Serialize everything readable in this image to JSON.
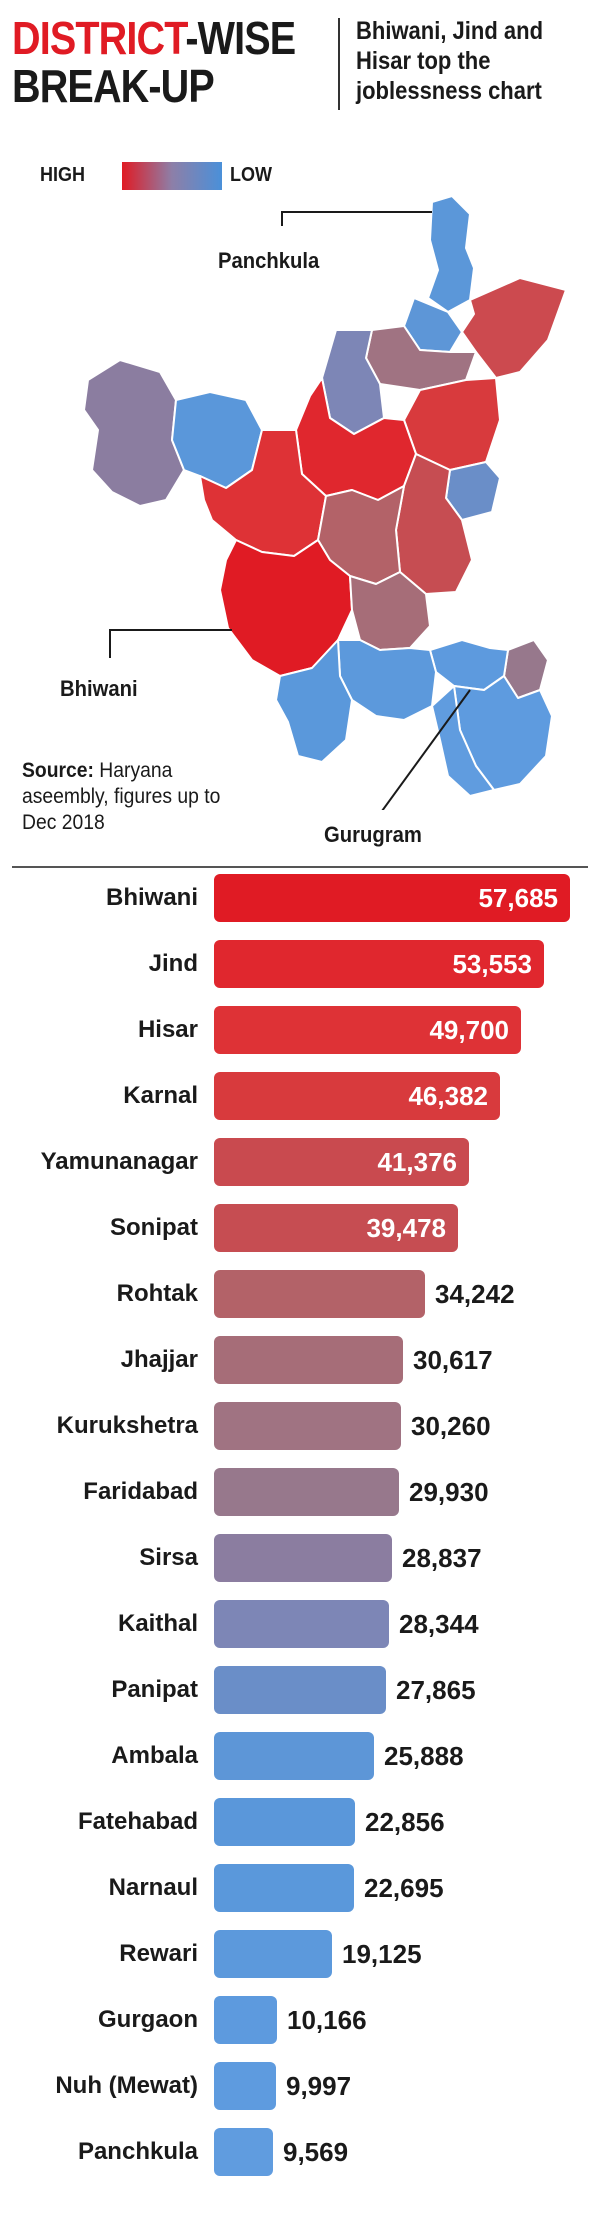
{
  "header": {
    "title_accent": "DISTRICT",
    "title_rest": "-WISE",
    "title_line2": "BREAK-UP",
    "subtitle": "Bhiwani, Jind and Hisar top the joblessness chart"
  },
  "legend": {
    "high_label": "HIGH",
    "low_label": "LOW",
    "high_color": "#e01b24",
    "low_color": "#4a90d9"
  },
  "map": {
    "labels": {
      "panchkula": "Panchkula",
      "bhiwani": "Bhiwani",
      "gurugram": "Gurugram"
    }
  },
  "source": {
    "label": "Source:",
    "text": "Haryana aseembly, figures up to Dec 2018"
  },
  "chart_data": {
    "type": "bar",
    "orientation": "horizontal",
    "title": "DISTRICT-WISE BREAK-UP",
    "categories": [
      "Bhiwani",
      "Jind",
      "Hisar",
      "Karnal",
      "Yamunanagar",
      "Sonipat",
      "Rohtak",
      "Jhajjar",
      "Kurukshetra",
      "Faridabad",
      "Sirsa",
      "Kaithal",
      "Panipat",
      "Ambala",
      "Fatehabad",
      "Narnaul",
      "Rewari",
      "Gurgaon",
      "Nuh (Mewat)",
      "Panchkula"
    ],
    "values": [
      57685,
      53553,
      49700,
      46382,
      41376,
      39478,
      34242,
      30617,
      30260,
      29930,
      28837,
      28344,
      27865,
      25888,
      22856,
      22695,
      19125,
      10166,
      9997,
      9569
    ],
    "value_labels": [
      "57,685",
      "53,553",
      "49,700",
      "46,382",
      "41,376",
      "39,478",
      "34,242",
      "30,617",
      "30,260",
      "29,930",
      "28,837",
      "28,344",
      "27,865",
      "25,888",
      "22,856",
      "22,695",
      "19,125",
      "10,166",
      "9,997",
      "9,569"
    ],
    "colors": [
      "#e01b24",
      "#e0272e",
      "#de3236",
      "#d83a3d",
      "#c94a4f",
      "#c64d52",
      "#b36268",
      "#a66d78",
      "#a07382",
      "#97788c",
      "#8b7da0",
      "#7d86b6",
      "#6a8ec8",
      "#5d96d7",
      "#5a97da",
      "#5a98db",
      "#5c99dc",
      "#5d9ade",
      "#5e9bdf",
      "#609cdf"
    ],
    "xlabel": "",
    "ylabel": "",
    "legend": "top-left",
    "grid": false
  }
}
